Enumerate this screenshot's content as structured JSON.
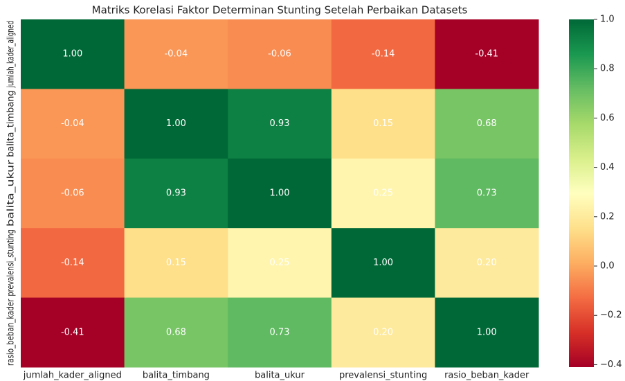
{
  "chart_data": {
    "type": "heatmap",
    "title": "Matriks Korelasi Faktor Determinan Stunting Setelah Perbaikan Datasets",
    "categories": [
      "jumlah_kader_aligned",
      "balita_timbang",
      "balita_ukur",
      "prevalensi_stunting",
      "rasio_beban_kader"
    ],
    "values": [
      [
        1.0,
        -0.04,
        -0.06,
        -0.14,
        -0.41
      ],
      [
        -0.04,
        1.0,
        0.93,
        0.15,
        0.68
      ],
      [
        -0.06,
        0.93,
        1.0,
        0.25,
        0.73
      ],
      [
        -0.14,
        0.15,
        0.25,
        1.0,
        0.2
      ],
      [
        -0.41,
        0.68,
        0.73,
        0.2,
        1.0
      ]
    ],
    "value_labels": [
      [
        "1.00",
        "-0.04",
        "-0.06",
        "-0.14",
        "-0.41"
      ],
      [
        "-0.04",
        "1.00",
        "0.93",
        "0.15",
        "0.68"
      ],
      [
        "-0.06",
        "0.93",
        "1.00",
        "0.25",
        "0.73"
      ],
      [
        "-0.14",
        "0.15",
        "0.25",
        "1.00",
        "0.20"
      ],
      [
        "-0.41",
        "0.68",
        "0.73",
        "0.20",
        "1.00"
      ]
    ],
    "colormap": "RdYlGn",
    "colorbar_lim": [
      -0.41,
      1.0
    ],
    "colorbar_ticks": [
      {
        "value": -0.4,
        "label": "−0.4"
      },
      {
        "value": -0.2,
        "label": "−0.2"
      },
      {
        "value": 0,
        "label": "0.0"
      },
      0.2,
      0.4,
      0.6,
      0.8,
      {
        "value": 1,
        "label": "1.0"
      }
    ]
  }
}
